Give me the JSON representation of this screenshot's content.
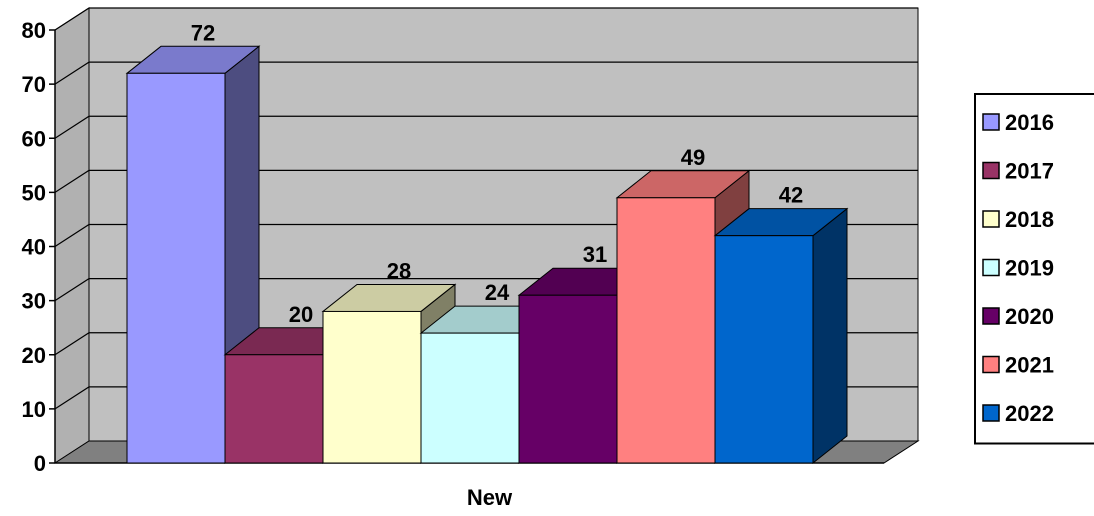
{
  "chart_data": {
    "type": "bar",
    "style": "3d-clustered",
    "categories": [
      "New"
    ],
    "series": [
      {
        "name": "2016",
        "values": [
          72
        ],
        "color": "#9999FF"
      },
      {
        "name": "2017",
        "values": [
          20
        ],
        "color": "#993366"
      },
      {
        "name": "2018",
        "values": [
          28
        ],
        "color": "#FFFFCC"
      },
      {
        "name": "2019",
        "values": [
          24
        ],
        "color": "#CCFFFF"
      },
      {
        "name": "2020",
        "values": [
          31
        ],
        "color": "#660066"
      },
      {
        "name": "2021",
        "values": [
          49
        ],
        "color": "#FF8080"
      },
      {
        "name": "2022",
        "values": [
          42
        ],
        "color": "#0066CC"
      }
    ],
    "data_labels": true,
    "yticks": [
      0,
      10,
      20,
      30,
      40,
      50,
      60,
      70,
      80
    ],
    "ylim": [
      0,
      80
    ],
    "grid": true,
    "legend_position": "right",
    "colors": {
      "wall": "#C0C0C0",
      "floor": "#808080",
      "gridline": "#000000"
    }
  }
}
